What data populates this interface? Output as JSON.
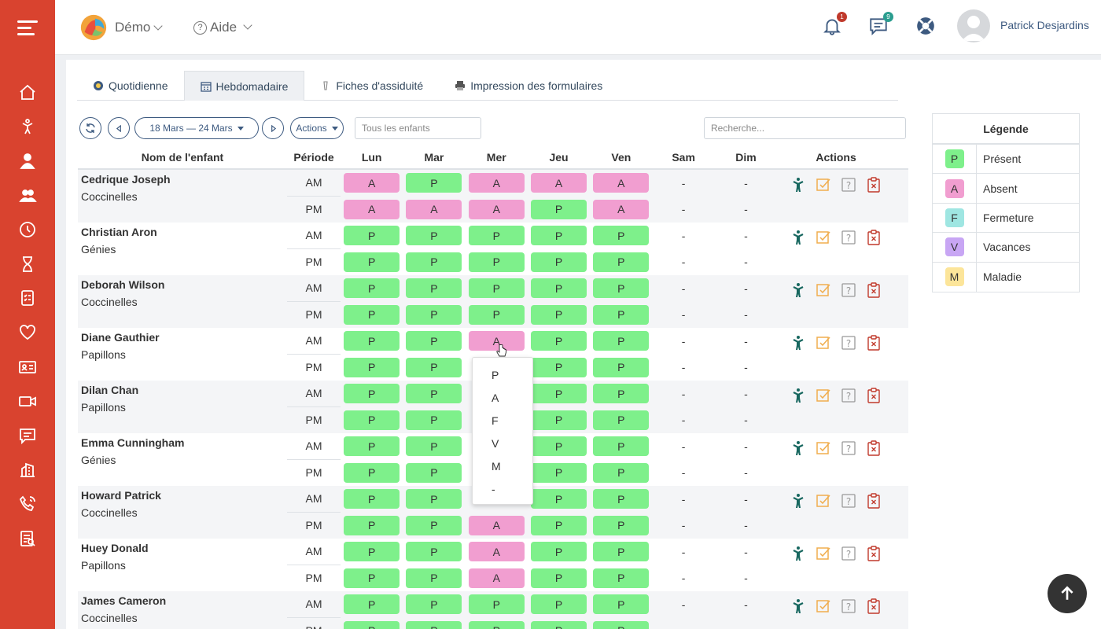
{
  "app": {
    "demo_label": "Démo",
    "help_label": "Aide",
    "notification_count": "1",
    "message_count": "9",
    "user_name": "Patrick Desjardins",
    "colors": {
      "sidebar": "#d9432f",
      "present": "#7ef08b",
      "absent": "#f19ed0",
      "fermeture": "#9fe6e2",
      "vacances": "#c8a6f4",
      "maladie": "#fce59a"
    }
  },
  "sidebar_icons": [
    "home-icon",
    "child-icon",
    "staff-icon",
    "group-icon",
    "clock-icon",
    "hourglass-icon",
    "checklist-icon",
    "heart-icon",
    "id-card-icon",
    "video-icon",
    "chat-icon",
    "building-icon",
    "phone-icon",
    "report-icon"
  ],
  "tabs": [
    {
      "label": "Quotidienne",
      "icon": "daily-icon"
    },
    {
      "label": "Hebdomadaire",
      "icon": "calendar-icon"
    },
    {
      "label": "Fiches d'assiduité",
      "icon": "clipboard-icon"
    },
    {
      "label": "Impression des formulaires",
      "icon": "printer-icon"
    }
  ],
  "toolbar": {
    "date_range": "18 Mars — 24 Mars",
    "actions_label": "Actions",
    "children_filter": "Tous les enfants",
    "search_placeholder": "Recherche..."
  },
  "table": {
    "headers": {
      "name": "Nom de l'enfant",
      "period": "Période",
      "days": [
        "Lun",
        "Mar",
        "Mer",
        "Jeu",
        "Ven",
        "Sam",
        "Dim"
      ],
      "actions": "Actions"
    },
    "am": "AM",
    "pm": "PM",
    "empty": "-",
    "rows": [
      {
        "name": "Cedrique Joseph",
        "group": "Coccinelles",
        "am": [
          "A",
          "P",
          "A",
          "A",
          "A"
        ],
        "pm": [
          "A",
          "A",
          "A",
          "P",
          "A"
        ]
      },
      {
        "name": "Christian Aron",
        "group": "Génies",
        "am": [
          "P",
          "P",
          "P",
          "P",
          "P"
        ],
        "pm": [
          "P",
          "P",
          "P",
          "P",
          "P"
        ]
      },
      {
        "name": "Deborah Wilson",
        "group": "Coccinelles",
        "am": [
          "P",
          "P",
          "P",
          "P",
          "P"
        ],
        "pm": [
          "P",
          "P",
          "P",
          "P",
          "P"
        ]
      },
      {
        "name": "Diane Gauthier",
        "group": "Papillons",
        "am": [
          "P",
          "P",
          "A",
          "P",
          "P"
        ],
        "pm": [
          "P",
          "P",
          "",
          "P",
          "P"
        ]
      },
      {
        "name": "Dilan Chan",
        "group": "Papillons",
        "am": [
          "P",
          "P",
          "",
          "P",
          "P"
        ],
        "pm": [
          "P",
          "P",
          "",
          "P",
          "P"
        ]
      },
      {
        "name": "Emma Cunningham",
        "group": "Génies",
        "am": [
          "P",
          "P",
          "",
          "P",
          "P"
        ],
        "pm": [
          "P",
          "P",
          "",
          "P",
          "P"
        ]
      },
      {
        "name": "Howard Patrick",
        "group": "Coccinelles",
        "am": [
          "P",
          "P",
          "",
          "P",
          "P"
        ],
        "pm": [
          "P",
          "P",
          "A",
          "P",
          "P"
        ]
      },
      {
        "name": "Huey Donald",
        "group": "Papillons",
        "am": [
          "P",
          "P",
          "A",
          "P",
          "P"
        ],
        "pm": [
          "P",
          "P",
          "A",
          "P",
          "P"
        ]
      },
      {
        "name": "James Cameron",
        "group": "Coccinelles",
        "am": [
          "P",
          "P",
          "P",
          "P",
          "P"
        ],
        "pm": [
          "P",
          "P",
          "P",
          "P",
          "P"
        ]
      }
    ]
  },
  "dropdown": {
    "options": [
      "P",
      "A",
      "F",
      "V",
      "M",
      "-"
    ]
  },
  "legend": {
    "title": "Légende",
    "items": [
      {
        "code": "P",
        "label": "Présent"
      },
      {
        "code": "A",
        "label": "Absent"
      },
      {
        "code": "F",
        "label": "Fermeture"
      },
      {
        "code": "V",
        "label": "Vacances"
      },
      {
        "code": "M",
        "label": "Maladie"
      }
    ]
  }
}
